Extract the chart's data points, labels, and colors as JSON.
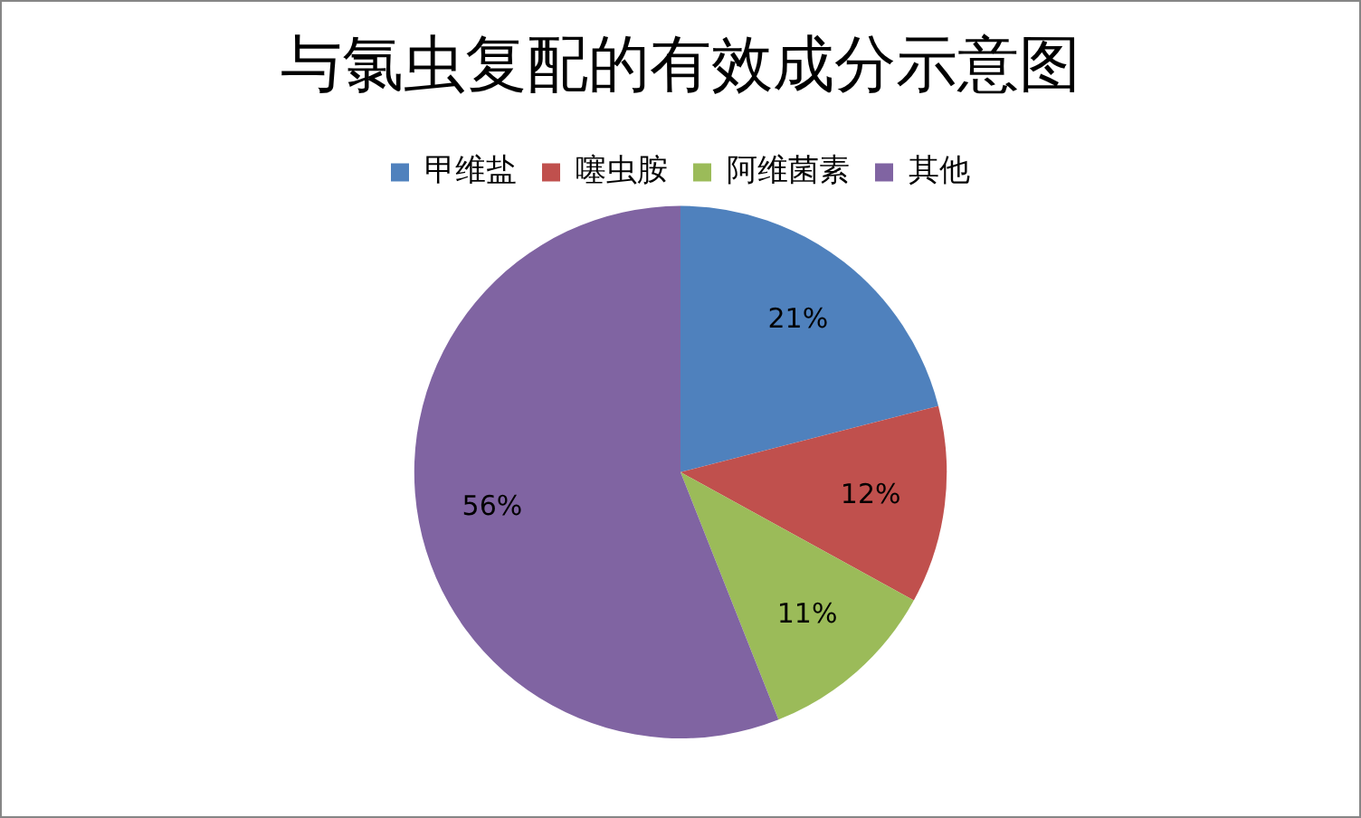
{
  "chart_data": {
    "type": "pie",
    "title": "与氯虫复配的有效成分示意图",
    "categories": [
      "甲维盐",
      "噻虫胺",
      "阿维菌素",
      "其他"
    ],
    "values": [
      21,
      12,
      11,
      56
    ],
    "colors": [
      "#4f81bd",
      "#c0504d",
      "#9bbb59",
      "#8064a2"
    ],
    "value_labels": [
      "21%",
      "12%",
      "11%",
      "56%"
    ],
    "legend": "top"
  }
}
